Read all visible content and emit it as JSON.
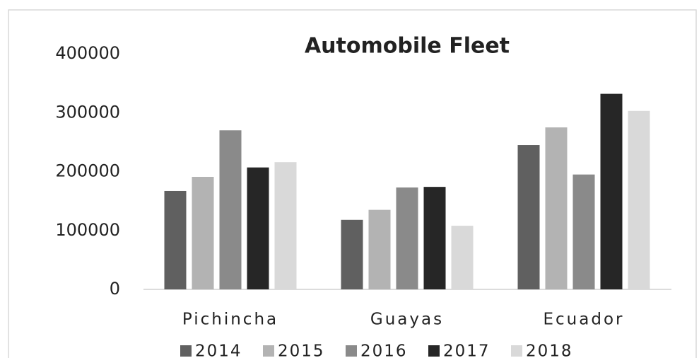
{
  "chart_data": {
    "type": "bar",
    "title": "Automobile Fleet",
    "categories": [
      "Pichincha",
      "Guayas",
      "Ecuador"
    ],
    "series": [
      {
        "name": "2014",
        "color": "#606060",
        "values": [
          167000,
          118000,
          245000
        ]
      },
      {
        "name": "2015",
        "color": "#b3b3b3",
        "values": [
          191000,
          135000,
          275000
        ]
      },
      {
        "name": "2016",
        "color": "#8a8a8a",
        "values": [
          270000,
          173000,
          195000
        ]
      },
      {
        "name": "2017",
        "color": "#262626",
        "values": [
          207000,
          174000,
          332000
        ]
      },
      {
        "name": "2018",
        "color": "#d9d9d9",
        "values": [
          216000,
          108000,
          303000
        ]
      }
    ],
    "ylim": [
      0,
      400000
    ],
    "yticks": [
      0,
      100000,
      200000,
      300000,
      400000
    ],
    "grid": false,
    "legend": "bottom"
  }
}
